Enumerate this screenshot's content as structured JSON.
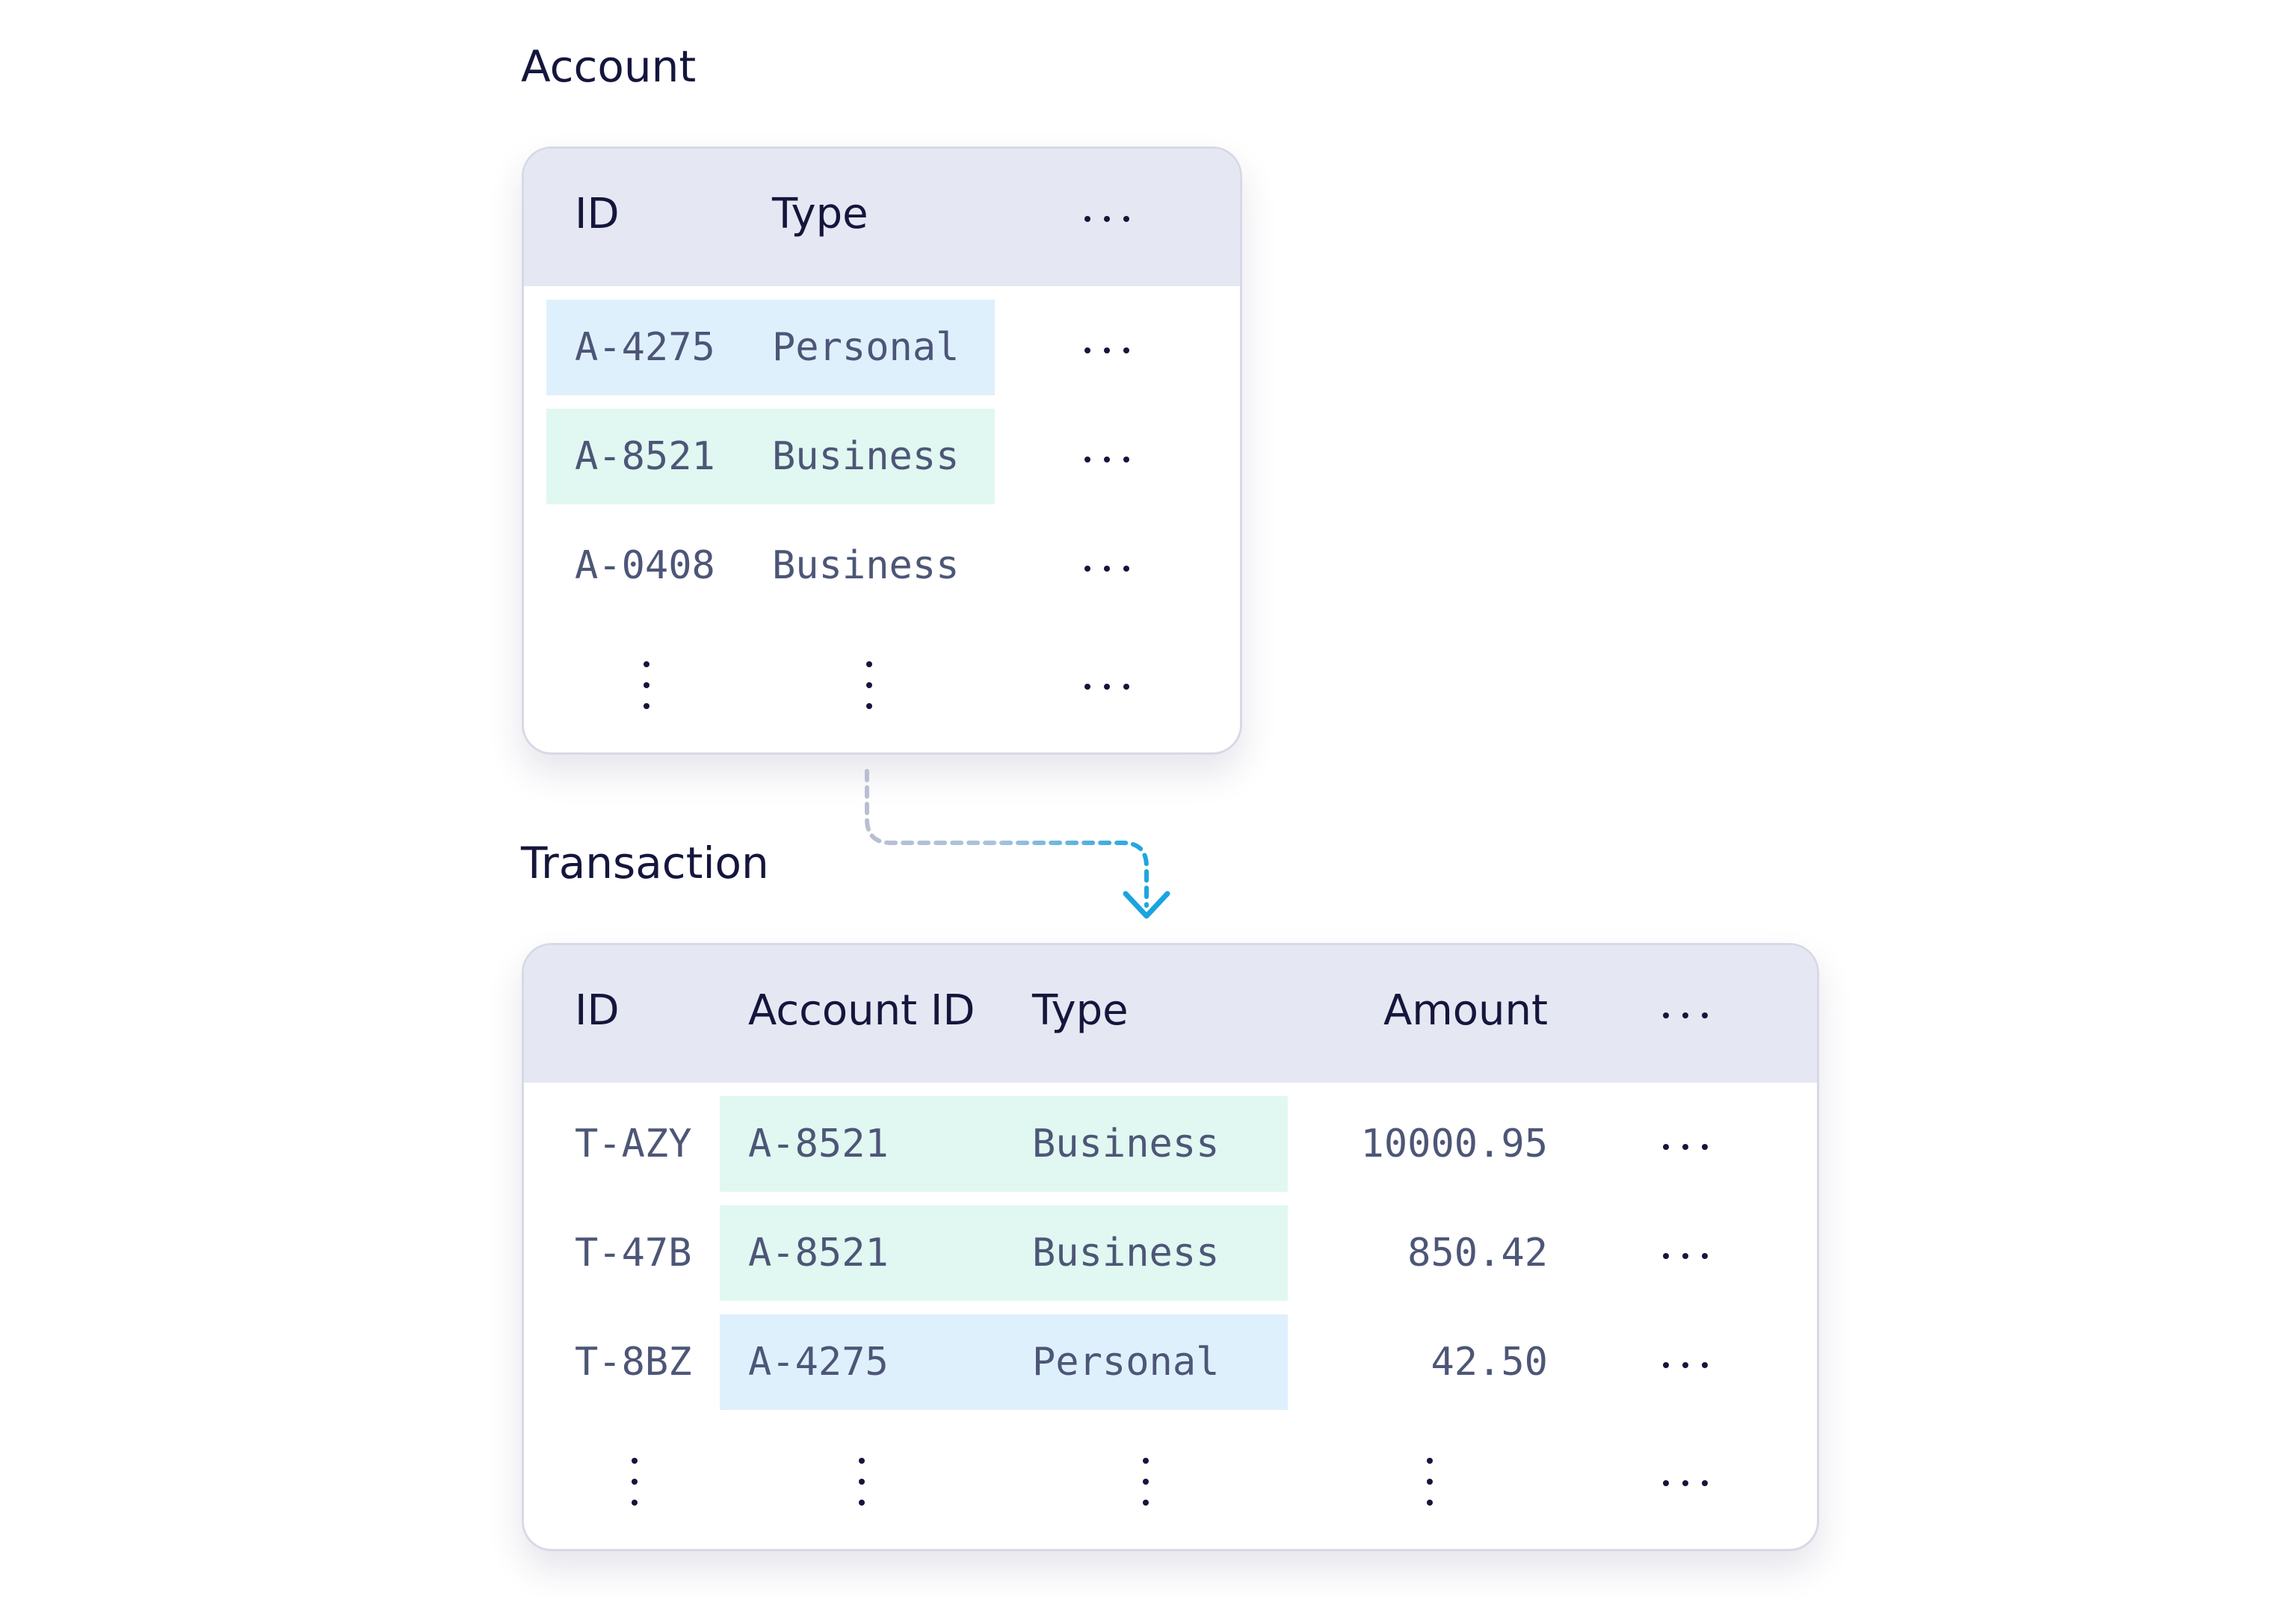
{
  "account": {
    "title": "Account",
    "headers": {
      "id": "ID",
      "type": "Type"
    },
    "rows": [
      {
        "id": "A-4275",
        "type": "Personal",
        "highlight": "blue"
      },
      {
        "id": "A-8521",
        "type": "Business",
        "highlight": "green"
      },
      {
        "id": "A-0408",
        "type": "Business",
        "highlight": "none"
      }
    ]
  },
  "transaction": {
    "title": "Transaction",
    "headers": {
      "id": "ID",
      "account_id": "Account ID",
      "type": "Type",
      "amount": "Amount"
    },
    "rows": [
      {
        "id": "T-AZY",
        "account_id": "A-8521",
        "type": "Business",
        "amount": "10000.95",
        "highlight": "green"
      },
      {
        "id": "T-47B",
        "account_id": "A-8521",
        "type": "Business",
        "amount": "850.42",
        "highlight": "green"
      },
      {
        "id": "T-8BZ",
        "account_id": "A-4275",
        "type": "Personal",
        "amount": "42.50",
        "highlight": "blue"
      }
    ]
  },
  "colors": {
    "header_bg": "#e5e7f3",
    "highlight_blue": "#dff0fd",
    "highlight_green": "#e0f8f1",
    "cell_text": "#4d5677",
    "title_text": "#14163c",
    "connector_gray": "#b9bfd3",
    "connector_blue": "#1aa4e0"
  },
  "icons": {
    "ellipsis": "horizontal-ellipsis-icon",
    "vertical_ellipsis": "vertical-ellipsis-icon",
    "connector": "dashed-arrow-down-icon"
  }
}
